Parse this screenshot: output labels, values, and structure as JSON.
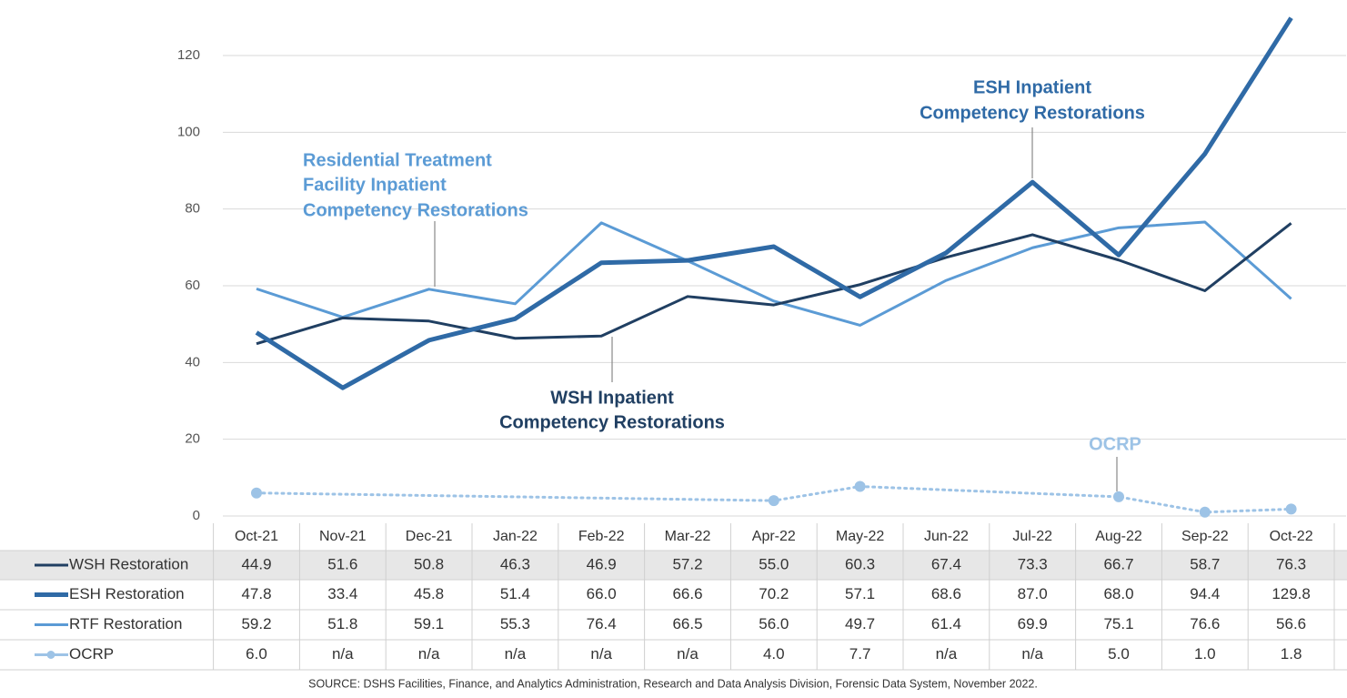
{
  "chart_data": {
    "type": "line",
    "categories": [
      "Oct-21",
      "Nov-21",
      "Dec-21",
      "Jan-22",
      "Feb-22",
      "Mar-22",
      "Apr-22",
      "May-22",
      "Jun-22",
      "Jul-22",
      "Aug-22",
      "Sep-22",
      "Oct-22"
    ],
    "series": [
      {
        "name": "WSH Restoration",
        "color": "#203f62",
        "width": 3,
        "values": [
          44.9,
          51.6,
          50.8,
          46.3,
          46.9,
          57.2,
          55,
          60.3,
          67.4,
          73.3,
          66.7,
          58.7,
          76.3
        ],
        "value_labels": [
          "44.9",
          "51.6",
          "50.8",
          "46.3",
          "46.9",
          "57.2",
          "55.0",
          "60.3",
          "67.4",
          "73.3",
          "66.7",
          "58.7",
          "76.3"
        ]
      },
      {
        "name": "ESH Restoration",
        "color": "#2f6aa6",
        "width": 5,
        "values": [
          47.8,
          33.4,
          45.8,
          51.4,
          66,
          66.6,
          70.2,
          57.1,
          68.6,
          87,
          68,
          94.4,
          129.8
        ],
        "value_labels": [
          "47.8",
          "33.4",
          "45.8",
          "51.4",
          "66.0",
          "66.6",
          "70.2",
          "57.1",
          "68.6",
          "87.0",
          "68.0",
          "94.4",
          "129.8"
        ]
      },
      {
        "name": "RTF Restoration",
        "color": "#5b9bd5",
        "width": 3,
        "values": [
          59.2,
          51.8,
          59.1,
          55.3,
          76.4,
          66.5,
          56,
          49.7,
          61.4,
          69.9,
          75.1,
          76.6,
          56.6
        ],
        "value_labels": [
          "59.2",
          "51.8",
          "59.1",
          "55.3",
          "76.4",
          "66.5",
          "56.0",
          "49.7",
          "61.4",
          "69.9",
          "75.1",
          "76.6",
          "56.6"
        ]
      },
      {
        "name": "OCRP",
        "color": "#9dc3e6",
        "width": 3,
        "dotted": true,
        "markers": true,
        "values": [
          6,
          null,
          null,
          null,
          null,
          null,
          4,
          7.7,
          null,
          null,
          5,
          1,
          1.8
        ],
        "value_labels": [
          "6.0",
          "n/a",
          "n/a",
          "n/a",
          "n/a",
          "n/a",
          "4.0",
          "7.7",
          "n/a",
          "n/a",
          "5.0",
          "1.0",
          "1.8"
        ]
      }
    ],
    "ylim": [
      0,
      120
    ],
    "yticks": [
      0,
      20,
      40,
      60,
      80,
      100,
      120
    ],
    "grid": true,
    "annotations": [
      {
        "lines": [
          "Residential Treatment",
          "Facility Inpatient",
          "Competency Restorations"
        ]
      },
      {
        "lines": [
          "WSH Inpatient",
          "Competency Restorations"
        ]
      },
      {
        "lines": [
          "ESH Inpatient",
          "Competency Restorations"
        ]
      },
      {
        "lines": [
          "OCRP"
        ]
      }
    ],
    "source": "SOURCE: DSHS Facilities, Finance, and Analytics Administration, Research and Data Analysis Division, Forensic Data System, November 2022."
  }
}
